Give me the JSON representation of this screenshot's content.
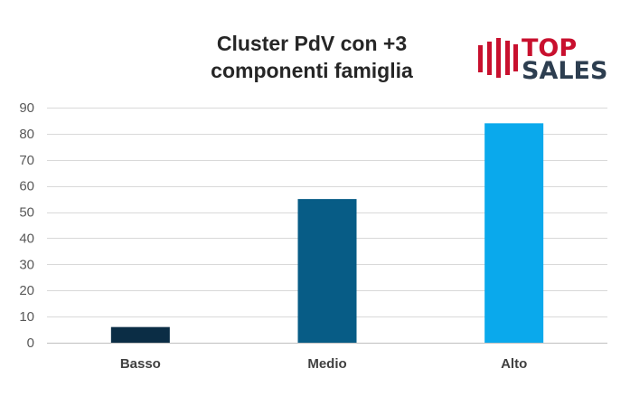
{
  "chart_data": {
    "type": "bar",
    "title_lines": [
      "Cluster PdV con +3",
      "componenti famiglia"
    ],
    "categories": [
      "Basso",
      "Medio",
      "Alto"
    ],
    "values": [
      6,
      55,
      84
    ],
    "ylim": [
      0,
      90
    ],
    "yticks": [
      0,
      10,
      20,
      30,
      40,
      50,
      60,
      70,
      80,
      90
    ],
    "bar_colors": [
      "#0b2d45",
      "#075c86",
      "#0aa9ec"
    ],
    "grid": true,
    "gridline_color": "#d9d9d9",
    "legend": "none"
  },
  "logo": {
    "line1": "TOP",
    "line2": "SALES",
    "red": "#c8102e",
    "navy": "#2d3e50"
  }
}
